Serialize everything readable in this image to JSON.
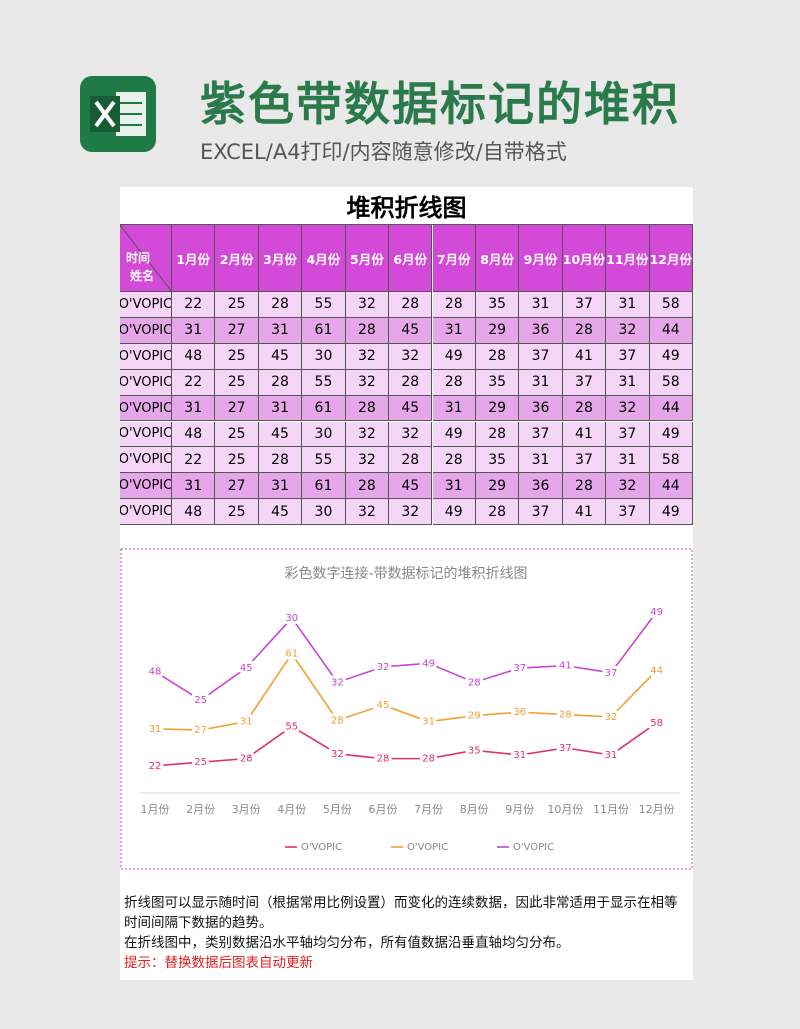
{
  "header": {
    "title": "紫色带数据标记的堆积",
    "subtitle": "EXCEL/A4打印/内容随意修改/自带格式"
  },
  "sheet": {
    "title": "堆积折线图",
    "corner": [
      "时间",
      "姓名"
    ],
    "columns": [
      "1月份",
      "2月份",
      "3月份",
      "4月份",
      "5月份",
      "6月份",
      "7月份",
      "8月份",
      "9月份",
      "10月份",
      "11月份",
      "12月份"
    ],
    "rows": [
      {
        "name": "O'VOPIC",
        "values": [
          22,
          25,
          28,
          55,
          32,
          28,
          28,
          35,
          31,
          37,
          31,
          58
        ]
      },
      {
        "name": "O'VOPIC",
        "values": [
          31,
          27,
          31,
          61,
          28,
          45,
          31,
          29,
          36,
          28,
          32,
          44
        ]
      },
      {
        "name": "O'VOPIC",
        "values": [
          48,
          25,
          45,
          30,
          32,
          32,
          49,
          28,
          37,
          41,
          37,
          49
        ]
      },
      {
        "name": "O'VOPIC",
        "values": [
          22,
          25,
          28,
          55,
          32,
          28,
          28,
          35,
          31,
          37,
          31,
          58
        ]
      },
      {
        "name": "O'VOPIC",
        "values": [
          31,
          27,
          31,
          61,
          28,
          45,
          31,
          29,
          36,
          28,
          32,
          44
        ]
      },
      {
        "name": "O'VOPIC",
        "values": [
          48,
          25,
          45,
          30,
          32,
          32,
          49,
          28,
          37,
          41,
          37,
          49
        ]
      },
      {
        "name": "O'VOPIC",
        "values": [
          22,
          25,
          28,
          55,
          32,
          28,
          28,
          35,
          31,
          37,
          31,
          58
        ]
      },
      {
        "name": "O'VOPIC",
        "values": [
          31,
          27,
          31,
          61,
          28,
          45,
          31,
          29,
          36,
          28,
          32,
          44
        ]
      },
      {
        "name": "O'VOPIC",
        "values": [
          48,
          25,
          45,
          30,
          32,
          32,
          49,
          28,
          37,
          41,
          37,
          49
        ]
      }
    ]
  },
  "chart_data": {
    "type": "line",
    "stacked": true,
    "data_labels": true,
    "legend": "bottom",
    "title": "彩色数字连接-带数据标记的堆积折线图",
    "categories": [
      "1月份",
      "2月份",
      "3月份",
      "4月份",
      "5月份",
      "6月份",
      "7月份",
      "8月份",
      "9月份",
      "10月份",
      "11月份",
      "12月份"
    ],
    "series": [
      {
        "name": "O'VOPIC",
        "color": "#e0306a",
        "values": [
          22,
          25,
          28,
          55,
          32,
          28,
          28,
          35,
          31,
          37,
          31,
          58
        ]
      },
      {
        "name": "O'VOPIC",
        "color": "#f0a030",
        "values": [
          31,
          27,
          31,
          61,
          28,
          45,
          31,
          29,
          36,
          28,
          32,
          44
        ]
      },
      {
        "name": "O'VOPIC",
        "color": "#c844d0",
        "values": [
          48,
          25,
          45,
          30,
          32,
          32,
          49,
          28,
          37,
          41,
          37,
          49
        ]
      }
    ]
  },
  "notes": [
    "折线图可以显示随时间（根据常用比例设置）而变化的连续数据，因此非常适用于显示在相等时间间隔下数据的趋势。",
    "在折线图中，类别数据沿水平轴均匀分布，所有值数据沿垂直轴均匀分布。"
  ],
  "tip": "提示：替换数据后图表自动更新"
}
